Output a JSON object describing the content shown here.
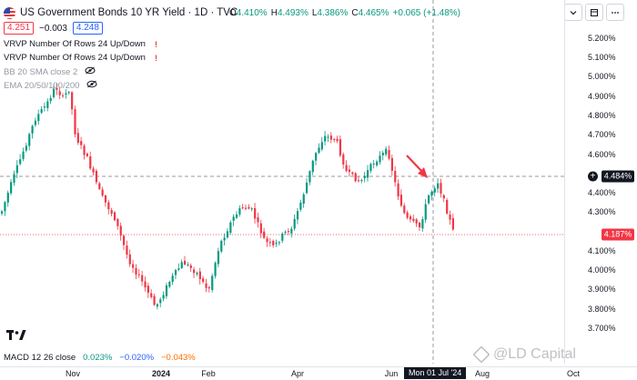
{
  "header": {
    "title": "US Government Bonds 10 YR Yield · 1D · TVC",
    "o_label": "O",
    "o_value": "4.410%",
    "h_label": "H",
    "h_value": "4.493%",
    "l_label": "L",
    "l_value": "4.386%",
    "c_label": "C",
    "c_value": "4.465%",
    "change": "+0.065 (+1.48%)"
  },
  "price_row": {
    "sell": "4.251",
    "spread": "−0.003",
    "buy": "4.248"
  },
  "indicators": [
    {
      "label": "VRVP  Number Of Rows 24 Up/Down",
      "status": "warning"
    },
    {
      "label": "VRVP  Number Of Rows 24 Up/Down",
      "status": "warning"
    },
    {
      "label": "BB 20 SMA close 2",
      "status": "hidden"
    },
    {
      "label": "EMA 20/50/100/200",
      "status": "hidden"
    }
  ],
  "warning_glyph": "!",
  "price_axis": {
    "ticks": [
      "5.200%",
      "5.100%",
      "5.000%",
      "4.900%",
      "4.800%",
      "4.700%",
      "4.600%",
      "4.400%",
      "4.300%",
      "4.100%",
      "4.000%",
      "3.900%",
      "3.800%",
      "3.700%"
    ],
    "crosshair_label": "4.484%",
    "last_price_label": "4.187%",
    "plus_glyph": "+"
  },
  "time_axis": {
    "labels": [
      "Nov",
      "2024",
      "Feb",
      "Apr",
      "Jun",
      "Aug",
      "Oct"
    ],
    "crosshair_date": "Mon 01 Jul '24"
  },
  "macd": {
    "label": "MACD 12 26 close",
    "v1": "0.023%",
    "v2": "−0.020%",
    "v3": "−0.043%"
  },
  "watermark": "@LD Capital",
  "colors": {
    "up": "#089981",
    "down": "#f23645",
    "accent": "#2962ff"
  }
}
